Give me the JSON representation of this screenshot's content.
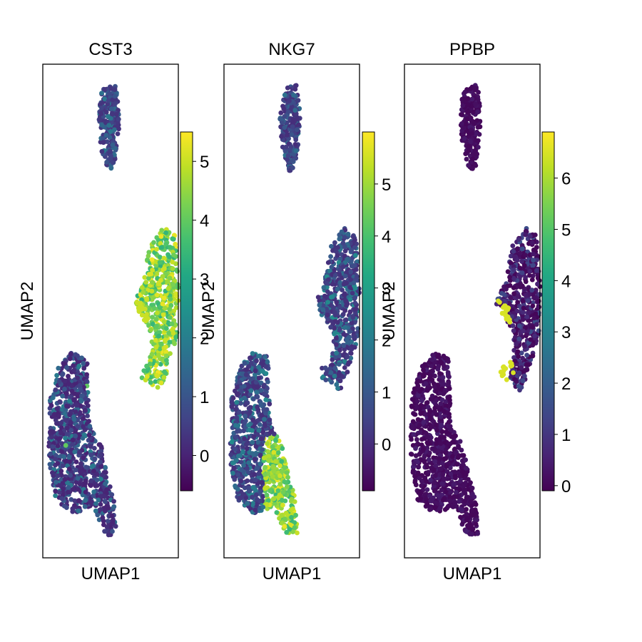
{
  "chart_data": [
    {
      "type": "scatter",
      "title": "CST3",
      "xlabel": "UMAP1",
      "ylabel": "UMAP2",
      "colorbar": {
        "colormap": "viridis",
        "min": -0.6,
        "max": 5.5,
        "ticks": [
          0,
          1,
          2,
          3,
          4,
          5
        ]
      },
      "clusters": [
        {
          "name": "top",
          "level_range": [
            0.3,
            1.9
          ]
        },
        {
          "name": "right",
          "level_range": [
            3.3,
            5.4
          ],
          "tail_level": 5.0
        },
        {
          "name": "bottom-left",
          "level_range": [
            0.0,
            2.1
          ],
          "sprinkle_level": 4.0
        }
      ]
    },
    {
      "type": "scatter",
      "title": "NKG7",
      "xlabel": "UMAP1",
      "ylabel": "UMAP2",
      "colorbar": {
        "colormap": "viridis",
        "min": -0.9,
        "max": 6.0,
        "ticks": [
          0,
          1,
          2,
          3,
          4,
          5
        ]
      },
      "clusters": [
        {
          "name": "top",
          "level_range": [
            0.0,
            1.8
          ]
        },
        {
          "name": "right",
          "level_range": [
            0.0,
            2.6
          ]
        },
        {
          "name": "bottom-left",
          "level_range": [
            0.0,
            2.4
          ],
          "hot_tip_level": [
            3.6,
            5.8
          ]
        }
      ]
    },
    {
      "type": "scatter",
      "title": "PPBP",
      "xlabel": "UMAP1",
      "ylabel": "UMAP2",
      "colorbar": {
        "colormap": "viridis",
        "min": -0.1,
        "max": 6.9,
        "ticks": [
          0,
          1,
          2,
          3,
          4,
          5,
          6
        ]
      },
      "clusters": [
        {
          "name": "top",
          "level_range": [
            0.0,
            0.4
          ]
        },
        {
          "name": "right",
          "level_range": [
            0.0,
            1.6
          ],
          "tail_level": 6.5
        },
        {
          "name": "bottom-left",
          "level_range": [
            0.0,
            0.5
          ]
        }
      ]
    }
  ]
}
